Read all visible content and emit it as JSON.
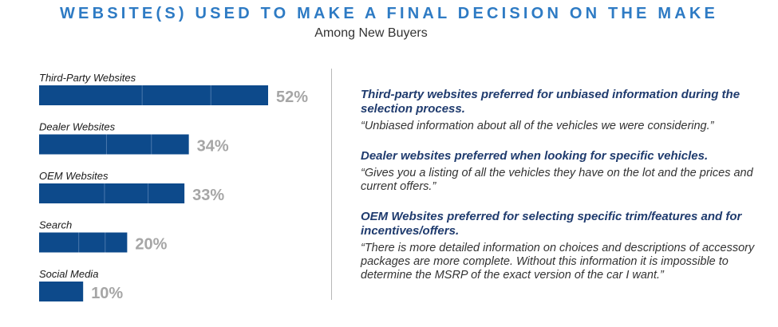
{
  "colors": {
    "title": "#2e7bc4",
    "bar": "#0d4a8b",
    "value": "#a6a6a6",
    "heading": "#1f3b6e"
  },
  "chart_data": {
    "type": "bar",
    "orientation": "horizontal",
    "title": "WEBSITE(S) USED TO MAKE A FINAL DECISION ON THE MAKE",
    "subtitle": "Among New Buyers",
    "categories": [
      "Third-Party Websites",
      "Dealer Websites",
      "OEM Websites",
      "Search",
      "Social Media"
    ],
    "values": [
      52,
      34,
      33,
      20,
      10
    ],
    "value_labels": [
      "52%",
      "34%",
      "33%",
      "20%",
      "10%"
    ],
    "unit": "%",
    "xlim": [
      0,
      100
    ],
    "grid": false,
    "legend": "none"
  },
  "notes": [
    {
      "heading": "Third-party websites preferred for unbiased information during the selection process.",
      "quote": "“Unbiased information about all of the vehicles we were considering.”"
    },
    {
      "heading": "Dealer websites preferred when looking for specific vehicles.",
      "quote": "“Gives you a listing of all the vehicles they have on the lot and the prices and current offers.”"
    },
    {
      "heading": "OEM Websites preferred for selecting specific trim/features and for incentives/offers.",
      "quote": "“There is more detailed information on choices and descriptions of accessory packages are more complete.  Without this information it is impossible to determine the MSRP of the exact version of the car I want.”"
    }
  ]
}
